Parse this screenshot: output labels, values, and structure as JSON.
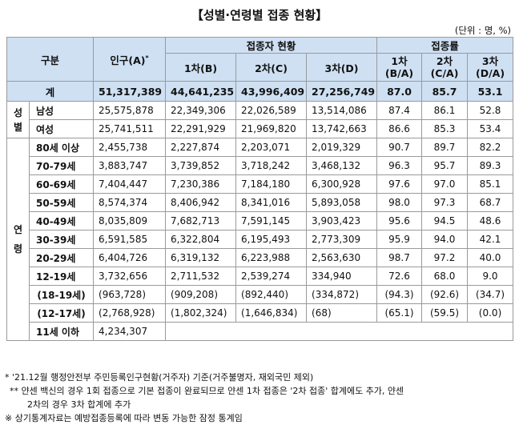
{
  "title": "【성별·연령별 접종 현황】",
  "unit": "(단위 : 명, %)",
  "header": {
    "category": "구분",
    "population": "인구(A)",
    "population_mark": "*",
    "vaccinated_group": "접종자 현황",
    "rate_group": "접종률",
    "dose1": "1차(B)",
    "dose2": "2차(C)",
    "dose3": "3차(D)",
    "rate1_top": "1차",
    "rate1_bot": "(B/A)",
    "rate2_top": "2차",
    "rate2_bot": "(C/A)",
    "rate3_top": "3차",
    "rate3_bot": "(D/A)"
  },
  "total": {
    "label": "계",
    "pop": "51,317,389",
    "d1": "44,641,235",
    "d2": "43,996,409",
    "d3": "27,256,749",
    "r1": "87.0",
    "r2": "85.7",
    "r3": "53.1"
  },
  "sex_side": [
    "성",
    "별"
  ],
  "sex_rows": [
    {
      "label": "남성",
      "pop": "25,575,878",
      "d1": "22,349,306",
      "d2": "22,026,589",
      "d3": "13,514,086",
      "r1": "87.4",
      "r2": "86.1",
      "r3": "52.8"
    },
    {
      "label": "여성",
      "pop": "25,741,511",
      "d1": "22,291,929",
      "d2": "21,969,820",
      "d3": "13,742,663",
      "r1": "86.6",
      "r2": "85.3",
      "r3": "53.4"
    }
  ],
  "age_side": [
    "연",
    "령"
  ],
  "age_rows": [
    {
      "label": "80세 이상",
      "pop": "2,455,738",
      "d1": "2,227,874",
      "d2": "2,203,071",
      "d3": "2,019,329",
      "r1": "90.7",
      "r2": "89.7",
      "r3": "82.2"
    },
    {
      "label": "70-79세",
      "pop": "3,883,747",
      "d1": "3,739,852",
      "d2": "3,718,242",
      "d3": "3,468,132",
      "r1": "96.3",
      "r2": "95.7",
      "r3": "89.3"
    },
    {
      "label": "60-69세",
      "pop": "7,404,447",
      "d1": "7,230,386",
      "d2": "7,184,180",
      "d3": "6,300,928",
      "r1": "97.6",
      "r2": "97.0",
      "r3": "85.1"
    },
    {
      "label": "50-59세",
      "pop": "8,574,374",
      "d1": "8,406,942",
      "d2": "8,341,016",
      "d3": "5,893,058",
      "r1": "98.0",
      "r2": "97.3",
      "r3": "68.7"
    },
    {
      "label": "40-49세",
      "pop": "8,035,809",
      "d1": "7,682,713",
      "d2": "7,591,145",
      "d3": "3,903,423",
      "r1": "95.6",
      "r2": "94.5",
      "r3": "48.6"
    },
    {
      "label": "30-39세",
      "pop": "6,591,585",
      "d1": "6,322,804",
      "d2": "6,195,493",
      "d3": "2,773,309",
      "r1": "95.9",
      "r2": "94.0",
      "r3": "42.1"
    },
    {
      "label": "20-29세",
      "pop": "6,404,726",
      "d1": "6,319,132",
      "d2": "6,223,988",
      "d3": "2,563,630",
      "r1": "98.7",
      "r2": "97.2",
      "r3": "40.0"
    },
    {
      "label": "12-19세",
      "pop": "3,732,656",
      "d1": "2,711,532",
      "d2": "2,539,274",
      "d3": "334,940",
      "r1": "72.6",
      "r2": "68.0",
      "r3": "9.0"
    }
  ],
  "sub_rows": [
    {
      "label": "(18-19세)",
      "pop": "(963,728)",
      "d1": "(909,208)",
      "d2": "(892,440)",
      "d3": "(334,872)",
      "r1": "(94.3)",
      "r2": "(92.6)",
      "r3": "(34.7)"
    },
    {
      "label": "(12-17세)",
      "pop": "(2,768,928)",
      "d1": "(1,802,324)",
      "d2": "(1,646,834)",
      "d3": "(68)",
      "r1": "(65.1)",
      "r2": "(59.5)",
      "r3": "(0.0)"
    }
  ],
  "last_row": {
    "label": "11세 이하",
    "pop": "4,234,307"
  },
  "notes": {
    "n1": "* '21.12월 행정안전부 주민등록인구현황(거주자) 기준(거주불명자, 재외국민 제외)",
    "n2a": "** 얀센 백신의 경우 1회 접종으로 기본 접종이 완료되므로 얀센 1차 접종은 '2차 접종' 합계에도 추가, 얀센",
    "n2b": "2차의 경우 3차 합계에 추가",
    "n3": "※ 상기통계자료는 예방접종등록에 따라 변동 가능한 잠정 통계임"
  }
}
